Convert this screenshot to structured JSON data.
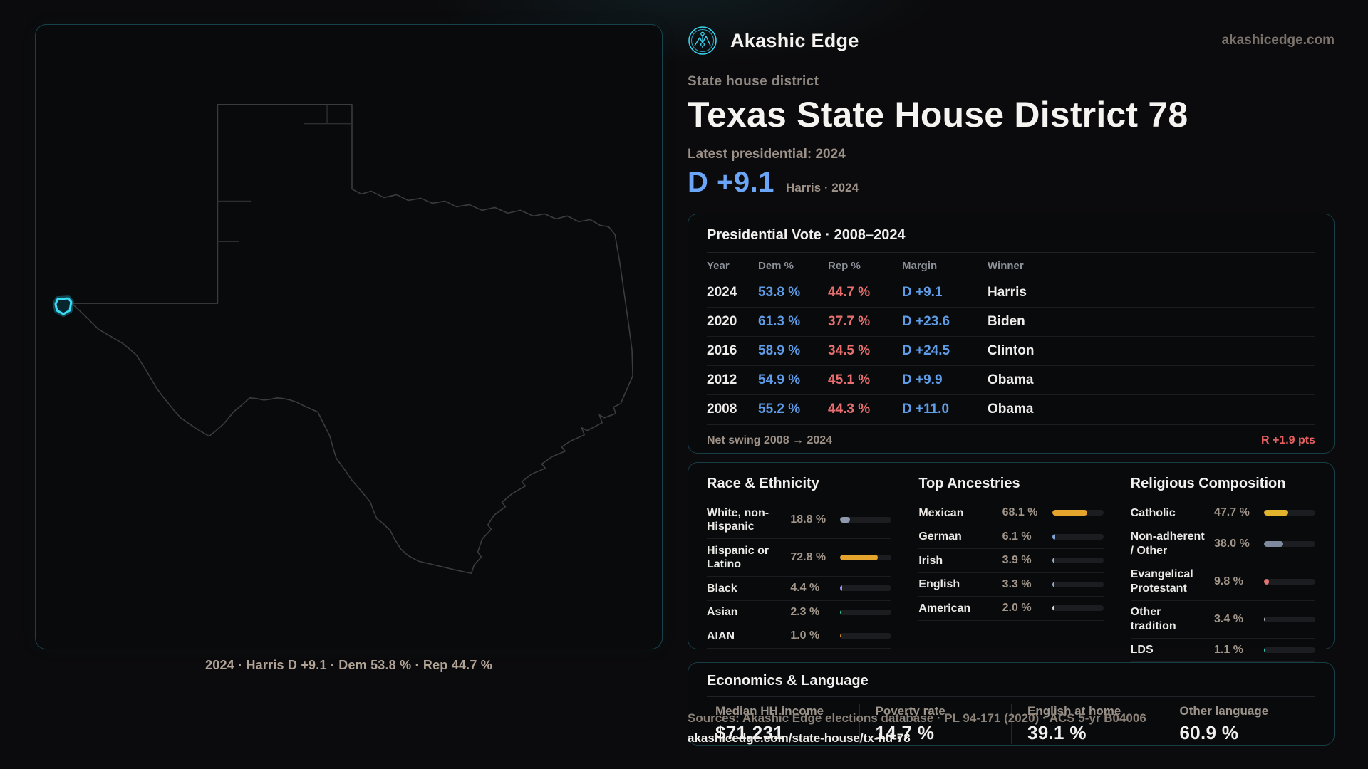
{
  "brand": {
    "name": "Akashic Edge",
    "domain": "akashicedge.com",
    "logo_icon": "akashic-edge-emblem",
    "accent_color": "#3ad2ee"
  },
  "header": {
    "eyebrow": "State house district",
    "title": "Texas State House District 78",
    "latest_label": "Latest presidential: 2024",
    "headline_margin": "D +9.1",
    "headline_context": "Harris · 2024"
  },
  "map": {
    "caption": "2024 · Harris D +9.1 · Dem 53.8 % · Rep 44.7 %",
    "district_highlight_color": "#3bdcf6"
  },
  "presidential_table": {
    "title": "Presidential Vote · 2008–2024",
    "columns": [
      "Year",
      "Dem %",
      "Rep %",
      "Margin",
      "Winner"
    ],
    "rows": [
      {
        "year": "2024",
        "dem": "53.8 %",
        "rep": "44.7 %",
        "margin": "D +9.1",
        "winner": "Harris"
      },
      {
        "year": "2020",
        "dem": "61.3 %",
        "rep": "37.7 %",
        "margin": "D +23.6",
        "winner": "Biden"
      },
      {
        "year": "2016",
        "dem": "58.9 %",
        "rep": "34.5 %",
        "margin": "D +24.5",
        "winner": "Clinton"
      },
      {
        "year": "2012",
        "dem": "54.9 %",
        "rep": "45.1 %",
        "margin": "D +9.9",
        "winner": "Obama"
      },
      {
        "year": "2008",
        "dem": "55.2 %",
        "rep": "44.3 %",
        "margin": "D +11.0",
        "winner": "Obama"
      }
    ],
    "net_swing_label": "Net swing 2008 → 2024",
    "net_swing_value": "R +1.9 pts",
    "dem_color": "#5f9de8",
    "rep_color": "#e76f6f",
    "swing_color": "#e66060"
  },
  "demographics": {
    "groups": [
      {
        "title": "Race & Ethnicity",
        "items": [
          {
            "label": "White, non-Hispanic",
            "value": "18.8 %",
            "pct": 18.8,
            "color": "#8e99ad"
          },
          {
            "label": "Hispanic or Latino",
            "value": "72.8 %",
            "pct": 72.8,
            "color": "#e5a42b"
          },
          {
            "label": "Black",
            "value": "4.4 %",
            "pct": 4.4,
            "color": "#a78bfa"
          },
          {
            "label": "Asian",
            "value": "2.3 %",
            "pct": 2.3,
            "color": "#34d399"
          },
          {
            "label": "AIAN",
            "value": "1.0 %",
            "pct": 1.0,
            "color": "#d98a33"
          }
        ]
      },
      {
        "title": "Top Ancestries",
        "items": [
          {
            "label": "Mexican",
            "value": "68.1 %",
            "pct": 68.1,
            "color": "#e5a42b"
          },
          {
            "label": "German",
            "value": "6.1 %",
            "pct": 6.1,
            "color": "#7fa3d4"
          },
          {
            "label": "Irish",
            "value": "3.9 %",
            "pct": 3.9,
            "color": "#9db0c8"
          },
          {
            "label": "English",
            "value": "3.3 %",
            "pct": 3.3,
            "color": "#8fa8c8"
          },
          {
            "label": "American",
            "value": "2.0 %",
            "pct": 2.0,
            "color": "#d7dce2"
          }
        ]
      },
      {
        "title": "Religious Composition",
        "items": [
          {
            "label": "Catholic",
            "value": "47.7 %",
            "pct": 47.7,
            "color": "#e2b32c"
          },
          {
            "label": "Non-adherent / Other",
            "value": "38.0 %",
            "pct": 38.0,
            "color": "#7e8aa0"
          },
          {
            "label": "Evangelical Protestant",
            "value": "9.8 %",
            "pct": 9.8,
            "color": "#e07373"
          },
          {
            "label": "Other tradition",
            "value": "3.4 %",
            "pct": 3.4,
            "color": "#c3c9d2"
          },
          {
            "label": "LDS",
            "value": "1.1 %",
            "pct": 1.1,
            "color": "#2fd4c0"
          }
        ]
      }
    ]
  },
  "economics": {
    "title": "Economics & Language",
    "stats": [
      {
        "label": "Median HH income",
        "value": "$71,231"
      },
      {
        "label": "Poverty rate",
        "value": "14.7 %"
      },
      {
        "label": "English at home",
        "value": "39.1 %"
      },
      {
        "label": "Other language",
        "value": "60.9 %"
      }
    ]
  },
  "footer": {
    "sources": "Sources: Akashic Edge elections database · PL 94-171 (2020) · ACS 5-yr B04006",
    "permalink": "akashicedge.com/state-house/tx-hd-78"
  }
}
